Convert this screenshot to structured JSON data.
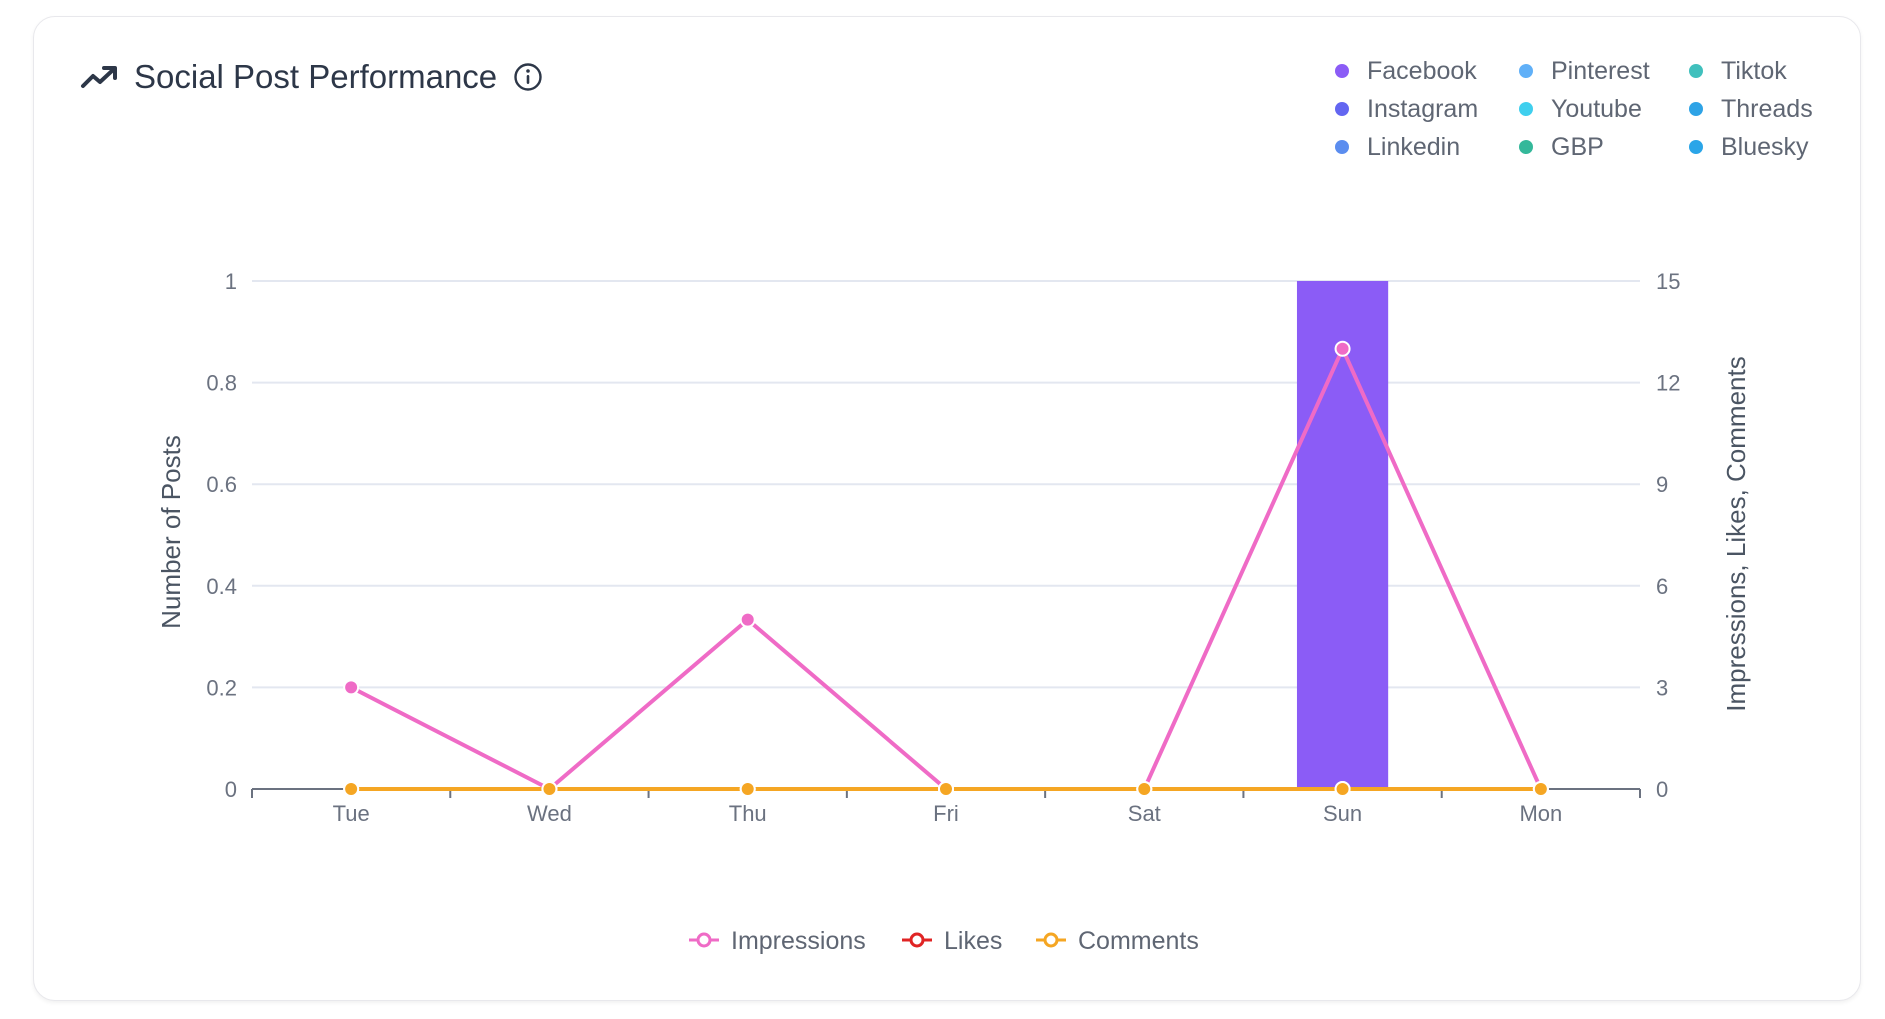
{
  "header": {
    "title": "Social Post Performance",
    "icon": "trending-up-icon",
    "info_icon": "info-icon"
  },
  "platform_legend": [
    {
      "label": "Facebook",
      "color": "#8b5cf6"
    },
    {
      "label": "Pinterest",
      "color": "#60b0f8"
    },
    {
      "label": "Tiktok",
      "color": "#40c0bd"
    },
    {
      "label": "Instagram",
      "color": "#6366f1"
    },
    {
      "label": "Youtube",
      "color": "#3fcfee"
    },
    {
      "label": "Threads",
      "color": "#2ea3e6"
    },
    {
      "label": "Linkedin",
      "color": "#5b8def"
    },
    {
      "label": "GBP",
      "color": "#34b89a"
    },
    {
      "label": "Bluesky",
      "color": "#2aa5e8"
    }
  ],
  "chart_data": {
    "type": "bar+line",
    "categories": [
      "Tue",
      "Wed",
      "Thu",
      "Fri",
      "Sat",
      "Sun",
      "Mon"
    ],
    "ylabel_left": "Number of Posts",
    "ylabel_right": "Impressions, Likes, Comments",
    "ylim_left": [
      0,
      1
    ],
    "yticks_left": [
      "0",
      "0.2",
      "0.4",
      "0.6",
      "0.8",
      "1"
    ],
    "ylim_right": [
      0,
      15
    ],
    "yticks_right": [
      "0",
      "3",
      "6",
      "9",
      "12",
      "15"
    ],
    "grid": true,
    "bars": [
      {
        "name": "Facebook",
        "color": "#8b5cf6",
        "values": [
          0,
          0,
          0,
          0,
          0,
          1,
          0
        ]
      }
    ],
    "series": [
      {
        "name": "Impressions",
        "color": "#ef6bc6",
        "values": [
          3,
          0,
          5,
          0,
          0,
          13,
          0
        ]
      },
      {
        "name": "Likes",
        "color": "#e02424",
        "values": [
          0,
          0,
          0,
          0,
          0,
          0,
          0
        ]
      },
      {
        "name": "Comments",
        "color": "#f5a623",
        "values": [
          0,
          0,
          0,
          0,
          0,
          0,
          0
        ]
      }
    ],
    "legend_position": "bottom"
  }
}
